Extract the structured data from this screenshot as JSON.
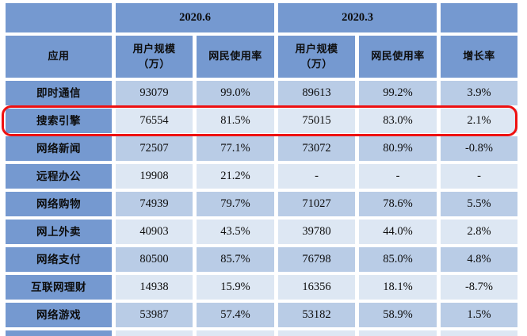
{
  "colors": {
    "header_blue": "#7599d0",
    "row_dark": "#b9cce6",
    "row_light": "#dde7f3",
    "highlight_red": "#ee1111",
    "background": "#ffffff"
  },
  "table": {
    "group_headers": [
      "2020.6",
      "2020.3"
    ],
    "col1_header": "应用",
    "user_scale_header_line1": "用户规模",
    "user_scale_header_line2": "（万）",
    "usage_rate_header": "网民使用率",
    "growth_header": "增长率"
  },
  "chart_data": {
    "type": "table",
    "title": "",
    "columns": [
      "应用",
      "2020.6 用户规模（万）",
      "2020.6 网民使用率",
      "2020.3 用户规模（万）",
      "2020.3 网民使用率",
      "增长率"
    ],
    "rows": [
      [
        "即时通信",
        "93079",
        "99.0%",
        "89613",
        "99.2%",
        "3.9%"
      ],
      [
        "搜索引擎",
        "76554",
        "81.5%",
        "75015",
        "83.0%",
        "2.1%"
      ],
      [
        "网络新闻",
        "72507",
        "77.1%",
        "73072",
        "80.9%",
        "-0.8%"
      ],
      [
        "远程办公",
        "19908",
        "21.2%",
        "-",
        "-",
        "-"
      ],
      [
        "网络购物",
        "74939",
        "79.7%",
        "71027",
        "78.6%",
        "5.5%"
      ],
      [
        "网上外卖",
        "40903",
        "43.5%",
        "39780",
        "44.0%",
        "2.8%"
      ],
      [
        "网络支付",
        "80500",
        "85.7%",
        "76798",
        "85.0%",
        "4.8%"
      ],
      [
        "互联网理财",
        "14938",
        "15.9%",
        "16356",
        "18.1%",
        "-8.7%"
      ],
      [
        "网络游戏",
        "53987",
        "57.4%",
        "53182",
        "58.9%",
        "1.5%"
      ]
    ],
    "highlighted_row": "搜索引擎",
    "layout_hints": {
      "header_row_groups": true,
      "alternating_row_shading": true,
      "last_row_cut_off": true
    }
  }
}
